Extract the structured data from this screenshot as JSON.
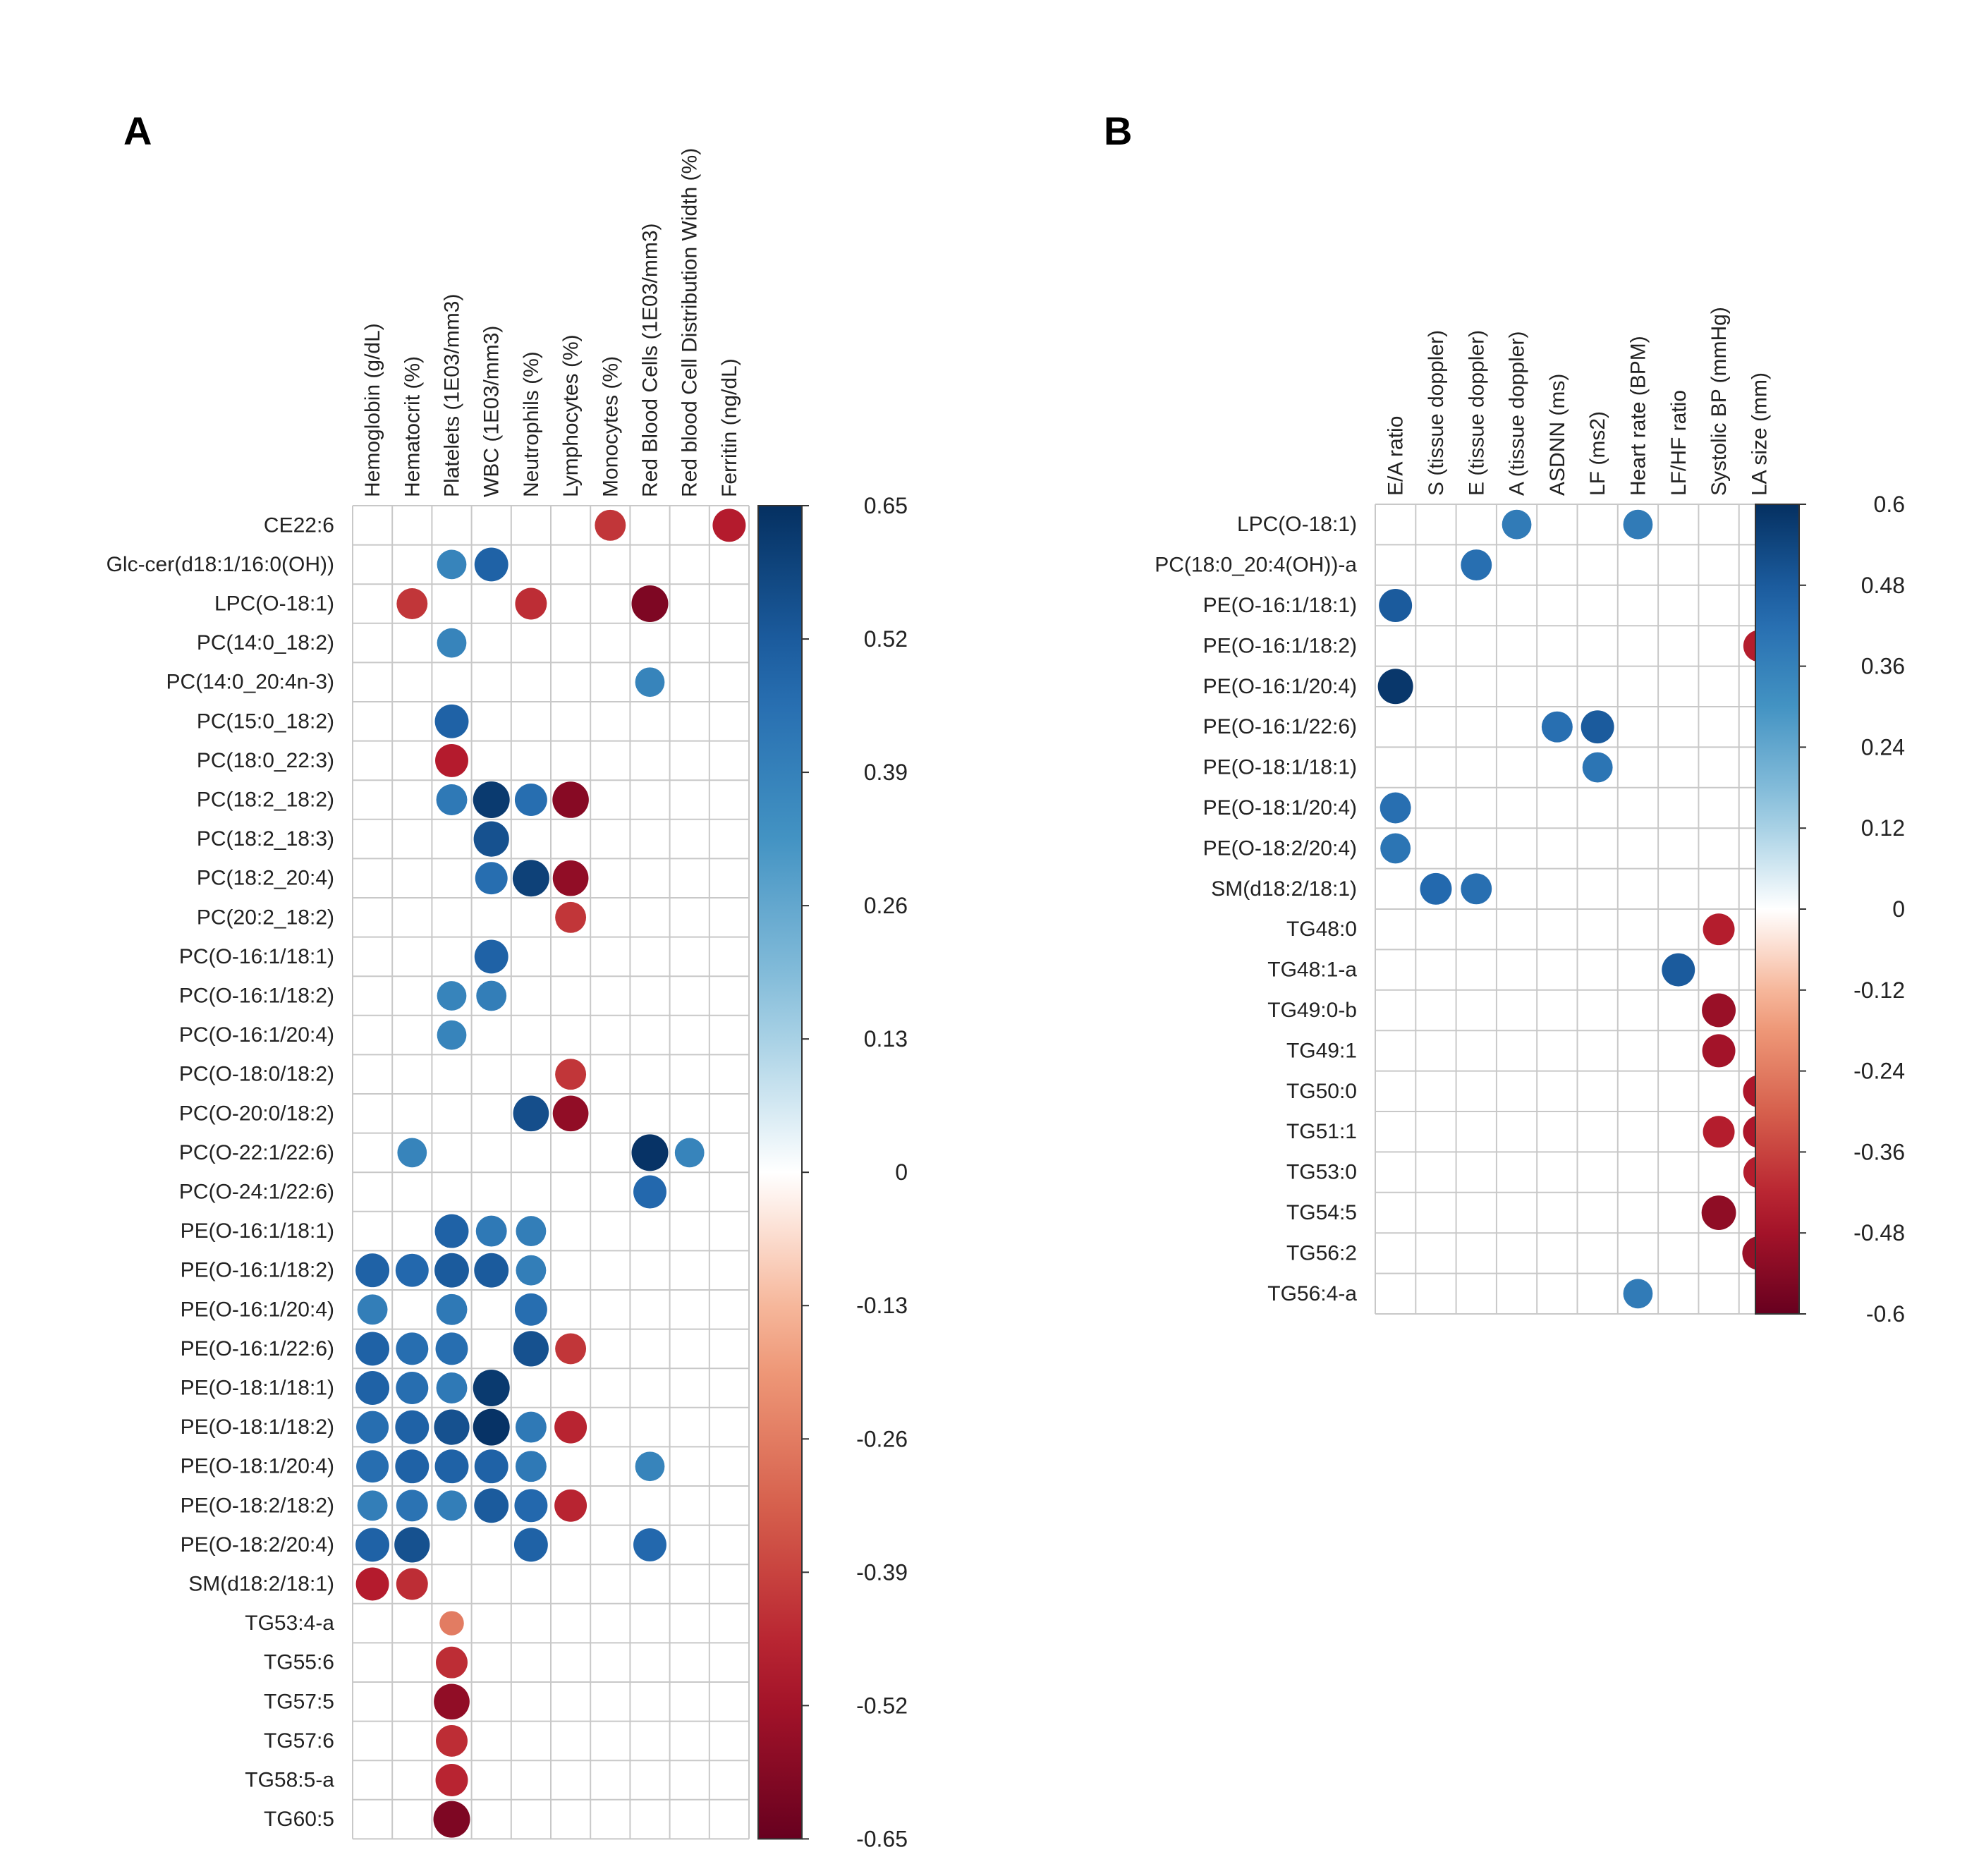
{
  "chart_data": [
    {
      "type": "heatmap",
      "subtype": "correlation-circle-plot",
      "panel_label": "A",
      "columns": [
        "Hemoglobin (g/dL)",
        "Hematocrit (%)",
        "Platelets (1E03/mm3)",
        "WBC (1E03/mm3)",
        "Neutrophils (%)",
        "Lymphocytes (%)",
        "Monocytes (%)",
        "Red Blood Cells (1E03/mm3)",
        "Red blood Cell Distribution Width (%)",
        "Ferritin (ng/dL)"
      ],
      "rows": [
        "CE22:6",
        "Glc-cer(d18:1/16:0(OH))",
        "LPC(O-18:1)",
        "PC(14:0_18:2)",
        "PC(14:0_20:4n-3)",
        "PC(15:0_18:2)",
        "PC(18:0_22:3)",
        "PC(18:2_18:2)",
        "PC(18:2_18:3)",
        "PC(18:2_20:4)",
        "PC(20:2_18:2)",
        "PC(O-16:1/18:1)",
        "PC(O-16:1/18:2)",
        "PC(O-16:1/20:4)",
        "PC(O-18:0/18:2)",
        "PC(O-20:0/18:2)",
        "PC(O-22:1/22:6)",
        "PC(O-24:1/22:6)",
        "PE(O-16:1/18:1)",
        "PE(O-16:1/18:2)",
        "PE(O-16:1/20:4)",
        "PE(O-16:1/22:6)",
        "PE(O-18:1/18:1)",
        "PE(O-18:1/18:2)",
        "PE(O-18:1/20:4)",
        "PE(O-18:2/18:2)",
        "PE(O-18:2/20:4)",
        "SM(d18:2/18:1)",
        "TG53:4-a",
        "TG55:6",
        "TG57:5",
        "TG57:6",
        "TG58:5-a",
        "TG60:5"
      ],
      "cells": [
        [
          0,
          6,
          -0.42
        ],
        [
          0,
          9,
          -0.48
        ],
        [
          1,
          2,
          0.38
        ],
        [
          1,
          3,
          0.5
        ],
        [
          2,
          1,
          -0.42
        ],
        [
          2,
          4,
          -0.44
        ],
        [
          2,
          7,
          -0.6
        ],
        [
          3,
          2,
          0.38
        ],
        [
          4,
          7,
          0.38
        ],
        [
          5,
          2,
          0.5
        ],
        [
          6,
          2,
          -0.48
        ],
        [
          7,
          2,
          0.42
        ],
        [
          7,
          3,
          0.62
        ],
        [
          7,
          4,
          0.46
        ],
        [
          7,
          5,
          -0.58
        ],
        [
          8,
          3,
          0.55
        ],
        [
          9,
          3,
          0.46
        ],
        [
          9,
          4,
          0.6
        ],
        [
          9,
          5,
          -0.56
        ],
        [
          10,
          5,
          -0.42
        ],
        [
          11,
          3,
          0.5
        ],
        [
          12,
          2,
          0.38
        ],
        [
          12,
          3,
          0.4
        ],
        [
          13,
          2,
          0.38
        ],
        [
          14,
          5,
          -0.42
        ],
        [
          15,
          4,
          0.56
        ],
        [
          15,
          5,
          -0.56
        ],
        [
          16,
          1,
          0.38
        ],
        [
          16,
          7,
          0.64
        ],
        [
          16,
          8,
          0.38
        ],
        [
          17,
          7,
          0.48
        ],
        [
          18,
          2,
          0.5
        ],
        [
          18,
          3,
          0.42
        ],
        [
          18,
          4,
          0.4
        ],
        [
          19,
          0,
          0.5
        ],
        [
          19,
          1,
          0.48
        ],
        [
          19,
          2,
          0.52
        ],
        [
          19,
          3,
          0.52
        ],
        [
          19,
          4,
          0.4
        ],
        [
          20,
          0,
          0.4
        ],
        [
          20,
          2,
          0.42
        ],
        [
          20,
          4,
          0.46
        ],
        [
          21,
          0,
          0.5
        ],
        [
          21,
          1,
          0.46
        ],
        [
          21,
          2,
          0.46
        ],
        [
          21,
          4,
          0.55
        ],
        [
          21,
          5,
          -0.42
        ],
        [
          22,
          0,
          0.5
        ],
        [
          22,
          1,
          0.46
        ],
        [
          22,
          2,
          0.42
        ],
        [
          22,
          3,
          0.62
        ],
        [
          23,
          0,
          0.46
        ],
        [
          23,
          1,
          0.5
        ],
        [
          23,
          2,
          0.55
        ],
        [
          23,
          3,
          0.64
        ],
        [
          23,
          4,
          0.42
        ],
        [
          23,
          5,
          -0.46
        ],
        [
          24,
          0,
          0.46
        ],
        [
          24,
          1,
          0.5
        ],
        [
          24,
          2,
          0.5
        ],
        [
          24,
          3,
          0.5
        ],
        [
          24,
          4,
          0.42
        ],
        [
          24,
          7,
          0.38
        ],
        [
          25,
          0,
          0.4
        ],
        [
          25,
          1,
          0.44
        ],
        [
          25,
          2,
          0.4
        ],
        [
          25,
          3,
          0.52
        ],
        [
          25,
          4,
          0.48
        ],
        [
          25,
          5,
          -0.46
        ],
        [
          26,
          0,
          0.5
        ],
        [
          26,
          1,
          0.55
        ],
        [
          26,
          4,
          0.5
        ],
        [
          26,
          7,
          0.48
        ],
        [
          27,
          0,
          -0.48
        ],
        [
          27,
          1,
          -0.44
        ],
        [
          28,
          2,
          -0.26
        ],
        [
          29,
          2,
          -0.44
        ],
        [
          30,
          2,
          -0.56
        ],
        [
          31,
          2,
          -0.44
        ],
        [
          32,
          2,
          -0.46
        ],
        [
          33,
          2,
          -0.6
        ]
      ],
      "colorbar": {
        "ticks": [
          "0.65",
          "0.52",
          "0.39",
          "0.26",
          "0.13",
          "0",
          "-0.13",
          "-0.26",
          "-0.39",
          "-0.52",
          "-0.65"
        ],
        "min": -0.65,
        "max": 0.65
      }
    },
    {
      "type": "heatmap",
      "subtype": "correlation-circle-plot",
      "panel_label": "B",
      "columns": [
        "E/A ratio",
        "S (tissue doppler)",
        "E (tissue doppler)",
        "A (tissue doppler)",
        "ASDNN (ms)",
        "LF (ms2)",
        "Heart rate (BPM)",
        "LF/HF ratio",
        "Systolic BP (mmHg)",
        "LA size (mm)"
      ],
      "rows": [
        "LPC(O-18:1)",
        "PC(18:0_20:4(OH))-a",
        "PE(O-16:1/18:1)",
        "PE(O-16:1/18:2)",
        "PE(O-16:1/20:4)",
        "PE(O-16:1/22:6)",
        "PE(O-18:1/18:1)",
        "PE(O-18:1/20:4)",
        "PE(O-18:2/20:4)",
        "SM(d18:2/18:1)",
        "TG48:0",
        "TG48:1-a",
        "TG49:0-b",
        "TG49:1",
        "TG50:0",
        "TG51:1",
        "TG53:0",
        "TG54:5",
        "TG56:2",
        "TG56:4-a"
      ],
      "cells": [
        [
          0,
          3,
          0.38
        ],
        [
          0,
          6,
          0.38
        ],
        [
          1,
          2,
          0.42
        ],
        [
          2,
          0,
          0.48
        ],
        [
          3,
          9,
          -0.44
        ],
        [
          4,
          0,
          0.58
        ],
        [
          5,
          4,
          0.42
        ],
        [
          5,
          5,
          0.48
        ],
        [
          6,
          5,
          0.4
        ],
        [
          7,
          0,
          0.42
        ],
        [
          8,
          0,
          0.4
        ],
        [
          9,
          1,
          0.44
        ],
        [
          9,
          2,
          0.42
        ],
        [
          10,
          8,
          -0.44
        ],
        [
          11,
          7,
          0.48
        ],
        [
          12,
          8,
          -0.5
        ],
        [
          13,
          8,
          -0.48
        ],
        [
          14,
          9,
          -0.46
        ],
        [
          15,
          8,
          -0.44
        ],
        [
          15,
          9,
          -0.46
        ],
        [
          16,
          9,
          -0.44
        ],
        [
          17,
          8,
          -0.52
        ],
        [
          18,
          9,
          -0.5
        ],
        [
          19,
          6,
          0.38
        ]
      ],
      "colorbar": {
        "ticks": [
          "0.6",
          "0.48",
          "0.36",
          "0.24",
          "0.12",
          "0",
          "-0.12",
          "-0.24",
          "-0.36",
          "-0.48",
          "-0.6"
        ],
        "min": -0.6,
        "max": 0.6
      }
    }
  ]
}
